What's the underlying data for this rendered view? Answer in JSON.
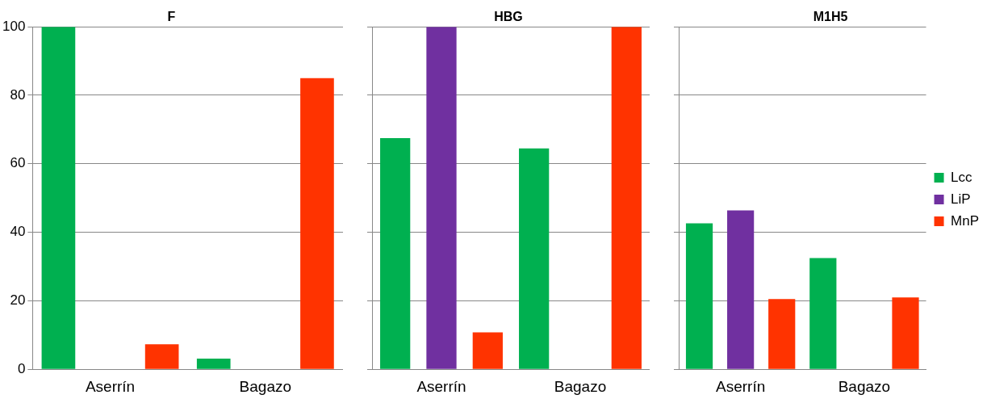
{
  "chart_data": [
    {
      "type": "bar",
      "title": "F",
      "categories": [
        "Aserrín",
        "Bagazo"
      ],
      "series": [
        {
          "color": "#00b050",
          "values": [
            100,
            3.1
          ]
        },
        {
          "color": "#7030a0",
          "values": [
            null,
            null
          ]
        },
        {
          "color": "#ff3300",
          "values": [
            7.3,
            85
          ]
        }
      ],
      "ylim": [
        0,
        100
      ],
      "yticks": [
        0,
        20,
        40,
        60,
        80,
        100
      ],
      "grid": "y",
      "legend": false
    },
    {
      "type": "bar",
      "title": "HBG",
      "categories": [
        "Aserrín",
        "Bagazo"
      ],
      "series": [
        {
          "color": "#00b050",
          "values": [
            67.5,
            64.5
          ]
        },
        {
          "color": "#7030a0",
          "values": [
            100,
            null
          ]
        },
        {
          "color": "#ff3300",
          "values": [
            10.8,
            100
          ]
        }
      ],
      "ylim": [
        0,
        100
      ],
      "yticks": [
        0,
        20,
        40,
        60,
        80,
        100
      ],
      "grid": "y",
      "legend": false,
      "tick_labels": "x"
    },
    {
      "type": "bar",
      "title": "M1H5",
      "categories": [
        "Aserrín",
        "Bagazo"
      ],
      "series": [
        {
          "name": "Lcc",
          "color": "#00b050",
          "values": [
            42.6,
            32.5
          ]
        },
        {
          "name": "LiP",
          "color": "#7030a0",
          "values": [
            46.4,
            null
          ]
        },
        {
          "name": "MnP",
          "color": "#ff3300",
          "values": [
            20.5,
            21
          ]
        }
      ],
      "ylim": [
        0,
        100
      ],
      "yticks": [
        0,
        20,
        40,
        60,
        80,
        100
      ],
      "grid": "y",
      "legend": "right",
      "tick_labels": "x"
    }
  ]
}
